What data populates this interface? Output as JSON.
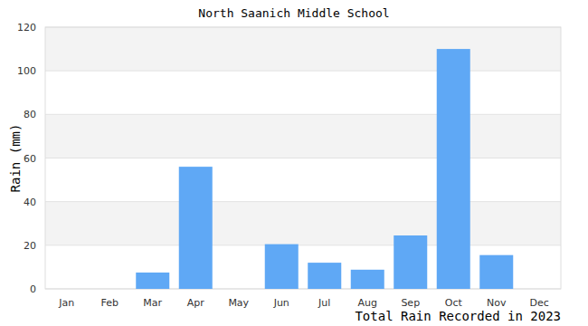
{
  "chart_data": {
    "type": "bar",
    "title": "North Saanich Middle School",
    "ylabel": "Rain (mm)",
    "xlabel": "Total Rain Recorded in 2023",
    "categories": [
      "Jan",
      "Feb",
      "Mar",
      "Apr",
      "May",
      "Jun",
      "Jul",
      "Aug",
      "Sep",
      "Oct",
      "Nov",
      "Dec"
    ],
    "values": [
      0,
      0,
      7.5,
      56,
      0,
      20.5,
      12,
      8.8,
      24.5,
      110,
      15.5,
      0
    ],
    "color": "#5fa8f5",
    "ylim": [
      0,
      120
    ],
    "yticks": [
      0,
      20,
      40,
      60,
      80,
      100,
      120
    ],
    "grid": true
  }
}
